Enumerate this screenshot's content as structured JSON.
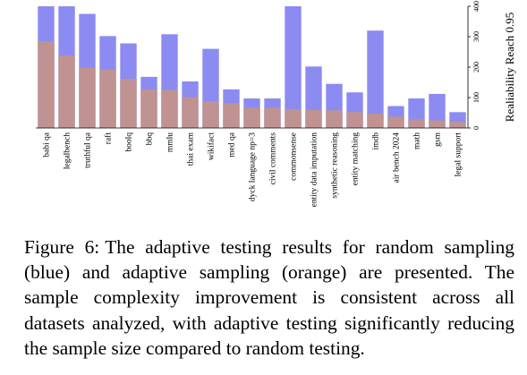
{
  "chart_data": {
    "type": "bar",
    "layout": "overlaid",
    "categories": [
      "babi qa",
      "legalbench",
      "truthful qa",
      "raft",
      "boolq",
      "bbq",
      "mmlu",
      "thai exam",
      "wikifact",
      "med qa",
      "dyck language np=3",
      "civil comments",
      "commonsense",
      "entity data imputation",
      "synthetic reasoning",
      "entity matching",
      "imdb",
      "air bench 2024",
      "math",
      "gsm",
      "legal support"
    ],
    "series": [
      {
        "name": "random sampling",
        "color": "#8b8bf2",
        "values": [
          400,
          400,
          375,
          302,
          278,
          168,
          308,
          153,
          260,
          127,
          97,
          97,
          400,
          202,
          145,
          117,
          320,
          72,
          97,
          112,
          52
        ]
      },
      {
        "name": "adaptive sampling",
        "color": "#c09291",
        "values": [
          285,
          238,
          197,
          192,
          162,
          127,
          125,
          102,
          88,
          82,
          67,
          67,
          62,
          60,
          58,
          52,
          47,
          37,
          28,
          25,
          20
        ]
      }
    ],
    "ylabel": "Realiability Reach 0.95",
    "ylim": [
      0,
      400
    ],
    "yticks": [
      "0",
      "100",
      "200",
      "300",
      "400"
    ],
    "grid": false
  },
  "caption": {
    "label": "Figure 6:",
    "text": "The adaptive testing results for random sampling (blue) and adaptive sampling (orange) are presented. The sample complexity improvement is consistent across all datasets analyzed, with adaptive testing significantly reducing the sample size compared to random testing."
  }
}
